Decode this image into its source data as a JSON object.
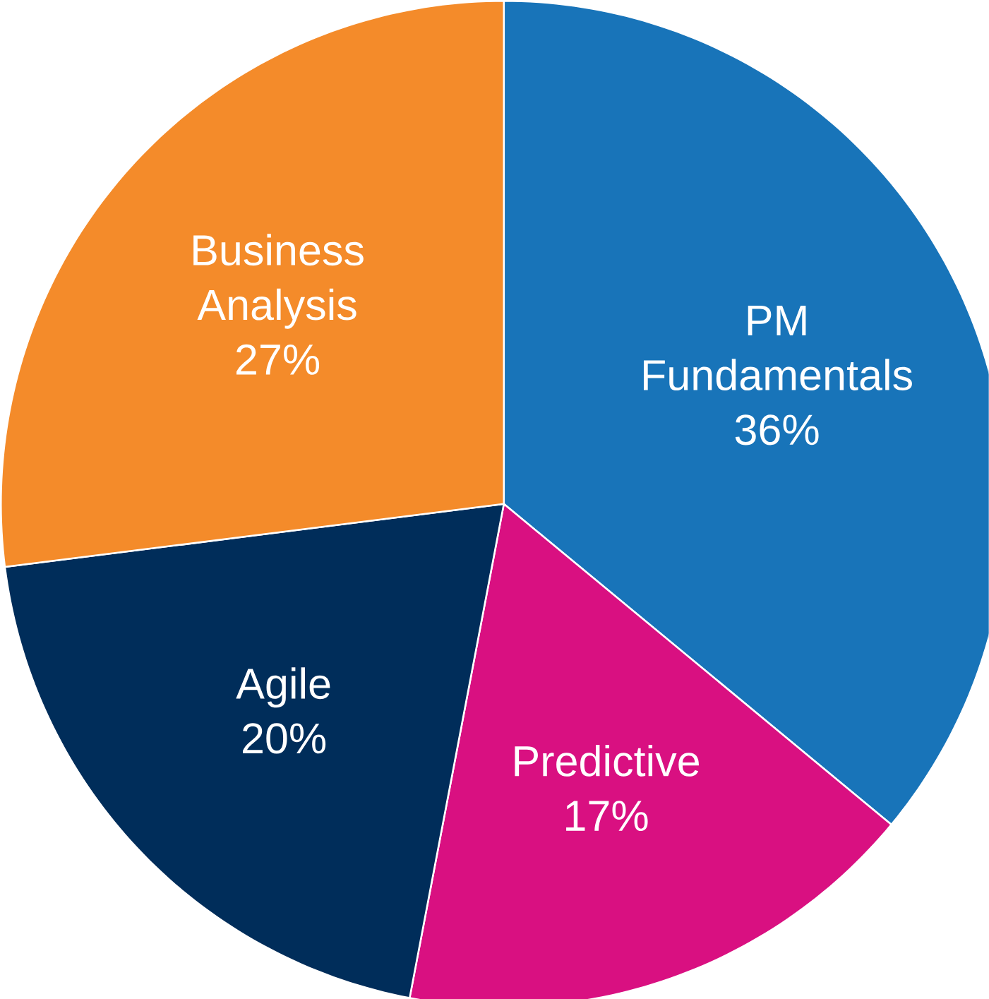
{
  "chart_data": {
    "type": "pie",
    "categories": [
      "PM Fundamentals",
      "Predictive",
      "Agile",
      "Business Analysis"
    ],
    "values": [
      36,
      17,
      20,
      27
    ],
    "value_labels": [
      "36%",
      "17%",
      "20%",
      "27%"
    ],
    "colors": [
      "#1874b9",
      "#d91081",
      "#002d5a",
      "#f48b2a"
    ]
  }
}
